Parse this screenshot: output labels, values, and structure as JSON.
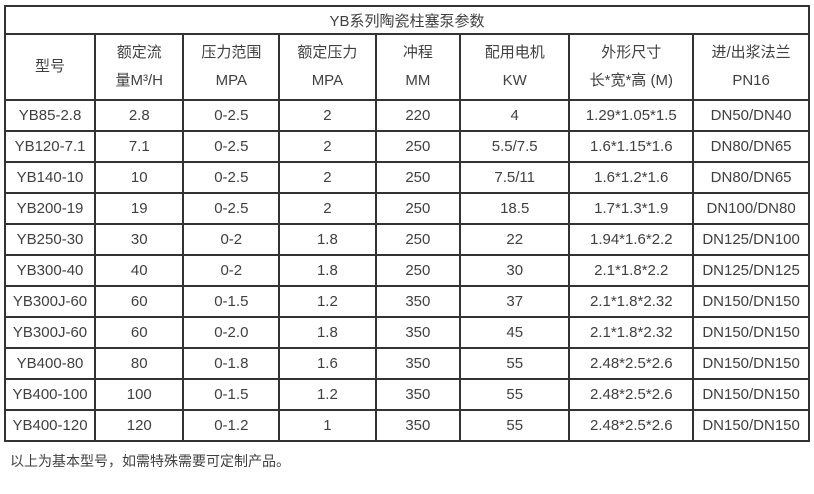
{
  "table": {
    "title": "YB系列陶瓷柱塞泵参数",
    "columns": [
      {
        "id": "model",
        "lines": [
          "型号"
        ]
      },
      {
        "id": "rated-flow",
        "lines": [
          "额定流",
          "量M³/H"
        ]
      },
      {
        "id": "pressure-range",
        "lines": [
          "压力范围",
          "MPA"
        ]
      },
      {
        "id": "rated-pressure",
        "lines": [
          "额定压力",
          "MPA"
        ]
      },
      {
        "id": "stroke",
        "lines": [
          "冲程",
          "MM"
        ]
      },
      {
        "id": "motor-power",
        "lines": [
          "配用电机",
          "KW"
        ]
      },
      {
        "id": "dimensions",
        "lines": [
          "外形尺寸",
          "长*宽*高 (M)"
        ]
      },
      {
        "id": "flange",
        "lines": [
          "进/出浆法兰",
          "PN16"
        ]
      }
    ],
    "rows": [
      [
        "YB85-2.8",
        "2.8",
        "0-2.5",
        "2",
        "220",
        "4",
        "1.29*1.05*1.5",
        "DN50/DN40"
      ],
      [
        "YB120-7.1",
        "7.1",
        "0-2.5",
        "2",
        "250",
        "5.5/7.5",
        "1.6*1.15*1.6",
        "DN80/DN65"
      ],
      [
        "YB140-10",
        "10",
        "0-2.5",
        "2",
        "250",
        "7.5/11",
        "1.6*1.2*1.6",
        "DN80/DN65"
      ],
      [
        "YB200-19",
        "19",
        "0-2.5",
        "2",
        "250",
        "18.5",
        "1.7*1.3*1.9",
        "DN100/DN80"
      ],
      [
        "YB250-30",
        "30",
        "0-2",
        "1.8",
        "250",
        "22",
        "1.94*1.6*2.2",
        "DN125/DN100"
      ],
      [
        "YB300-40",
        "40",
        "0-2",
        "1.8",
        "250",
        "30",
        "2.1*1.8*2.2",
        "DN125/DN125"
      ],
      [
        "YB300J-60",
        "60",
        "0-1.5",
        "1.2",
        "350",
        "37",
        "2.1*1.8*2.32",
        "DN150/DN150"
      ],
      [
        "YB300J-60",
        "60",
        "0-2.0",
        "1.8",
        "350",
        "45",
        "2.1*1.8*2.32",
        "DN150/DN150"
      ],
      [
        "YB400-80",
        "80",
        "0-1.8",
        "1.6",
        "350",
        "55",
        "2.48*2.5*2.6",
        "DN150/DN150"
      ],
      [
        "YB400-100",
        "100",
        "0-1.5",
        "1.2",
        "350",
        "55",
        "2.48*2.5*2.6",
        "DN150/DN150"
      ],
      [
        "YB400-120",
        "120",
        "0-1.2",
        "1",
        "350",
        "55",
        "2.48*2.5*2.6",
        "DN150/DN150"
      ]
    ]
  },
  "footer_note": "以上为基本型号，如需特殊需要可定制产品。",
  "colors": {
    "border": "#333333",
    "text": "#404040",
    "background": "#ffffff"
  }
}
